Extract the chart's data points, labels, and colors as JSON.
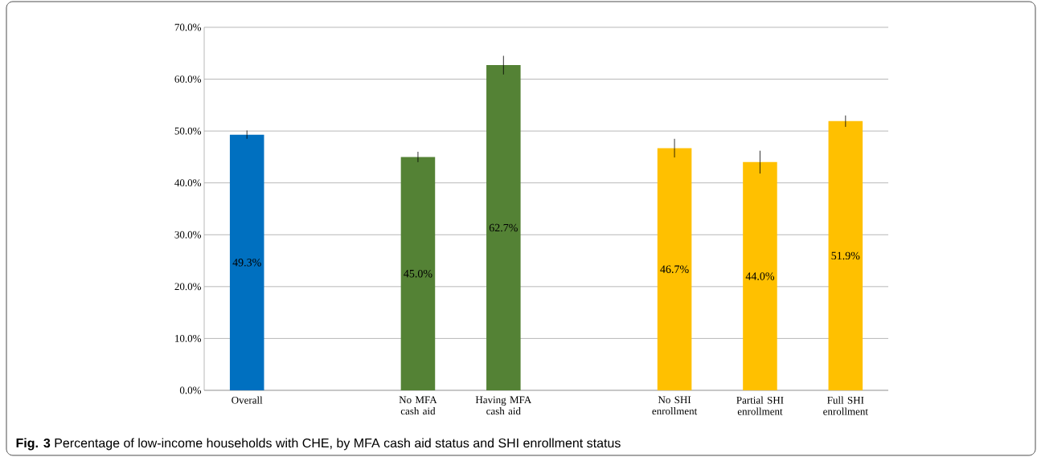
{
  "chart_data": {
    "type": "bar",
    "categories": [
      "Overall",
      null,
      "No MFA cash aid",
      "Having MFA cash aid",
      null,
      "No SHI enrollment",
      "Partial SHI enrollment",
      "Full SHI enrollment"
    ],
    "values": [
      49.3,
      null,
      45.0,
      62.7,
      null,
      46.7,
      44.0,
      51.9
    ],
    "colors": [
      "#0070c0",
      "#0070c0",
      "#548235",
      "#548235",
      "#ffc000",
      "#ffc000",
      "#ffc000",
      "#ffc000"
    ],
    "errors": [
      0.8,
      null,
      1.0,
      1.8,
      null,
      1.8,
      2.2,
      1.1
    ],
    "value_labels": [
      "49.3%",
      null,
      "45.0%",
      "62.7%",
      null,
      "46.7%",
      "44.0%",
      "51.9%"
    ],
    "ylim": [
      0,
      70
    ],
    "yticks": [
      {
        "value": 0,
        "label": "0.0%"
      },
      {
        "value": 10,
        "label": "10.0%"
      },
      {
        "value": 20,
        "label": "20.0%"
      },
      {
        "value": 30,
        "label": "30.0%"
      },
      {
        "value": 40,
        "label": "40.0%"
      },
      {
        "value": 50,
        "label": "50.0%"
      },
      {
        "value": 60,
        "label": "60.0%"
      },
      {
        "value": 70,
        "label": "70.0%"
      }
    ],
    "grid": "y",
    "annotations": [
      "**Fig. 3** Percentage of low-income households with CHE, by MFA cash aid status and SHI enrollment status"
    ]
  }
}
